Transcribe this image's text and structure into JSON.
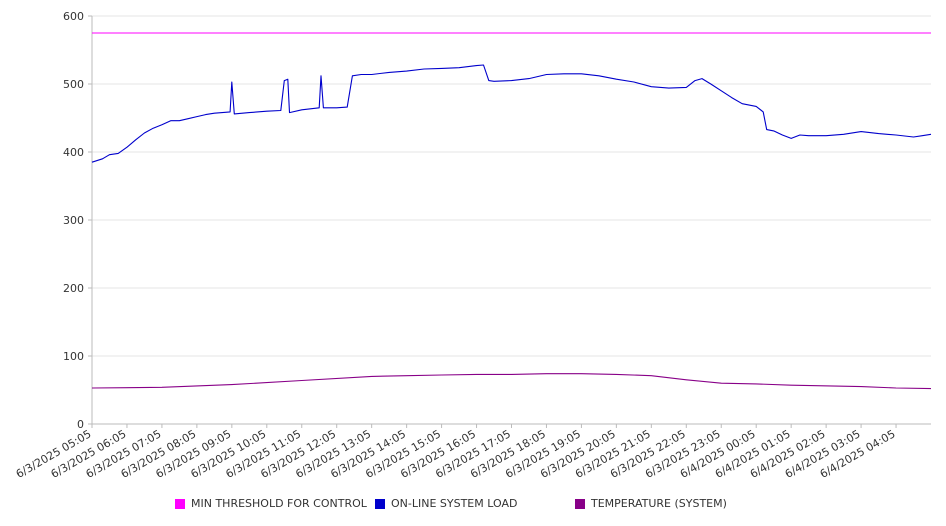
{
  "chart_data": {
    "type": "line",
    "title": "",
    "xlabel": "",
    "ylabel": "",
    "ylim": [
      0,
      600
    ],
    "yticks": [
      0,
      100,
      200,
      300,
      400,
      500,
      600
    ],
    "grid": true,
    "legend_position": "bottom",
    "x_tick_labels": [
      "6/3/2025 05:05",
      "6/3/2025 06:05",
      "6/3/2025 07:05",
      "6/3/2025 08:05",
      "6/3/2025 09:05",
      "6/3/2025 10:05",
      "6/3/2025 11:05",
      "6/3/2025 12:05",
      "6/3/2025 13:05",
      "6/3/2025 14:05",
      "6/3/2025 15:05",
      "6/3/2025 16:05",
      "6/3/2025 17:05",
      "6/3/2025 18:05",
      "6/3/2025 19:05",
      "6/3/2025 20:05",
      "6/3/2025 21:05",
      "6/3/2025 22:05",
      "6/3/2025 23:05",
      "6/4/2025 00:05",
      "6/4/2025 01:05",
      "6/4/2025 02:05",
      "6/4/2025 03:05",
      "6/4/2025 04:05"
    ],
    "x_range_hours": [
      0,
      24
    ],
    "series": [
      {
        "name": "MIN THRESHOLD FOR CONTROL",
        "color": "#ff00ff",
        "points": [
          [
            0,
            575
          ],
          [
            24,
            575
          ]
        ]
      },
      {
        "name": "ON-LINE SYSTEM LOAD",
        "color": "#0000cc",
        "points": [
          [
            0,
            385
          ],
          [
            0.3,
            390
          ],
          [
            0.5,
            396
          ],
          [
            0.75,
            398
          ],
          [
            1.0,
            407
          ],
          [
            1.25,
            418
          ],
          [
            1.5,
            428
          ],
          [
            1.75,
            435
          ],
          [
            2.0,
            440
          ],
          [
            2.25,
            446
          ],
          [
            2.5,
            446
          ],
          [
            2.75,
            449
          ],
          [
            3.0,
            452
          ],
          [
            3.25,
            455
          ],
          [
            3.5,
            457
          ],
          [
            3.95,
            459
          ],
          [
            4.0,
            503
          ],
          [
            4.07,
            456
          ],
          [
            4.5,
            458
          ],
          [
            5.0,
            460
          ],
          [
            5.4,
            461
          ],
          [
            5.5,
            505
          ],
          [
            5.6,
            507
          ],
          [
            5.65,
            458
          ],
          [
            6.0,
            462
          ],
          [
            6.5,
            465
          ],
          [
            6.55,
            512
          ],
          [
            6.62,
            465
          ],
          [
            7.0,
            465
          ],
          [
            7.3,
            466
          ],
          [
            7.45,
            512
          ],
          [
            7.7,
            514
          ],
          [
            8.0,
            514
          ],
          [
            8.5,
            517
          ],
          [
            9.0,
            519
          ],
          [
            9.5,
            522
          ],
          [
            10.0,
            523
          ],
          [
            10.5,
            524
          ],
          [
            11.0,
            527
          ],
          [
            11.2,
            528
          ],
          [
            11.35,
            505
          ],
          [
            11.5,
            504
          ],
          [
            12.0,
            505
          ],
          [
            12.5,
            508
          ],
          [
            13.0,
            514
          ],
          [
            13.5,
            515
          ],
          [
            14.0,
            515
          ],
          [
            14.5,
            512
          ],
          [
            15.0,
            507
          ],
          [
            15.5,
            503
          ],
          [
            16.0,
            496
          ],
          [
            16.5,
            494
          ],
          [
            17.0,
            495
          ],
          [
            17.25,
            505
          ],
          [
            17.45,
            508
          ],
          [
            17.7,
            500
          ],
          [
            18.0,
            490
          ],
          [
            18.3,
            480
          ],
          [
            18.6,
            471
          ],
          [
            19.0,
            467
          ],
          [
            19.2,
            459
          ],
          [
            19.3,
            433
          ],
          [
            19.5,
            431
          ],
          [
            19.75,
            425
          ],
          [
            20.0,
            420
          ],
          [
            20.25,
            425
          ],
          [
            20.5,
            424
          ],
          [
            21.0,
            424
          ],
          [
            21.5,
            426
          ],
          [
            22.0,
            430
          ],
          [
            22.5,
            427
          ],
          [
            23.0,
            425
          ],
          [
            23.5,
            422
          ],
          [
            23.75,
            424
          ],
          [
            24.0,
            426
          ]
        ]
      },
      {
        "name": "TEMPERATURE (SYSTEM)",
        "color": "#880088",
        "points": [
          [
            0,
            53
          ],
          [
            2.0,
            54
          ],
          [
            4.0,
            58
          ],
          [
            6.0,
            64
          ],
          [
            8.0,
            70
          ],
          [
            9.0,
            71
          ],
          [
            10.0,
            72
          ],
          [
            11.0,
            73
          ],
          [
            12.0,
            73
          ],
          [
            13.0,
            74
          ],
          [
            14.0,
            74
          ],
          [
            15.0,
            73
          ],
          [
            16.0,
            71
          ],
          [
            17.0,
            65
          ],
          [
            18.0,
            60
          ],
          [
            19.0,
            59
          ],
          [
            20.0,
            57
          ],
          [
            22.0,
            55
          ],
          [
            23.0,
            53
          ],
          [
            24.0,
            52
          ]
        ]
      }
    ]
  }
}
